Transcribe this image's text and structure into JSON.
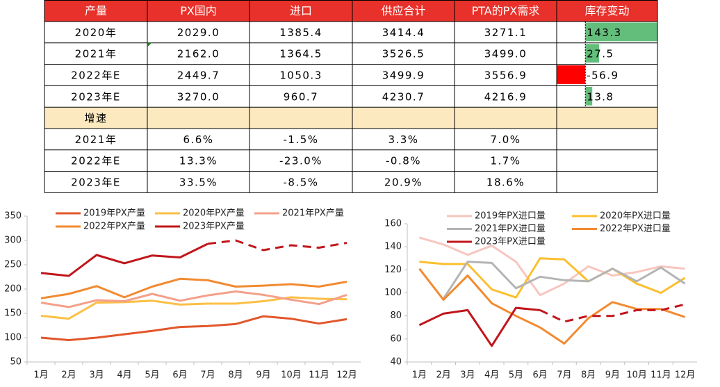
{
  "table": {
    "header": [
      "产量",
      "PX国内",
      "进口",
      "供应合计",
      "PTA的PX需求",
      "库存变动"
    ],
    "rows": [
      [
        "2020年",
        "2029.0",
        "1385.4",
        "3414.4",
        "3271.1",
        143.3
      ],
      [
        "2021年",
        "2162.0",
        "1364.5",
        "3526.5",
        "3499.0",
        27.5
      ],
      [
        "2022年E",
        "2449.7",
        "1050.3",
        "3499.9",
        "3556.9",
        -56.9
      ],
      [
        "2023年E",
        "3270.0",
        "960.7",
        "4230.7",
        "4216.9",
        13.8
      ],
      [
        "增速"
      ],
      [
        "2021年",
        "6.6%",
        "-1.5%",
        "3.3%",
        "7.0%"
      ],
      [
        "2022年E",
        "13.3%",
        "-23.0%",
        "-0.8%",
        "1.7%"
      ],
      [
        "2023年E",
        "33.5%",
        "-8.5%",
        "20.9%",
        "18.6%"
      ]
    ],
    "bar_colors": {
      "positive": "#63be7b",
      "negative": "#ff0000"
    }
  },
  "chart_data": [
    {
      "type": "line",
      "categories": [
        "1月",
        "2月",
        "3月",
        "4月",
        "5月",
        "6月",
        "7月",
        "8月",
        "9月",
        "10月",
        "11月",
        "12月"
      ],
      "ylim": [
        50,
        350
      ],
      "yticks": [
        50,
        100,
        150,
        200,
        250,
        300,
        350
      ],
      "legend": "top",
      "series": [
        {
          "name": "2019年PX产量",
          "color": "#e2562b",
          "values": [
            100,
            95,
            100,
            107,
            114,
            122,
            124,
            128,
            144,
            139,
            129,
            138
          ]
        },
        {
          "name": "2020年PX产量",
          "color": "#fbbf45",
          "values": [
            145,
            139,
            172,
            173,
            176,
            168,
            170,
            170,
            175,
            183,
            180,
            179
          ]
        },
        {
          "name": "2021年PX产量",
          "color": "#f4a08a",
          "values": [
            172,
            163,
            177,
            175,
            190,
            176,
            187,
            195,
            188,
            178,
            169,
            188
          ]
        },
        {
          "name": "2022年PX产量",
          "color": "#f28a30",
          "values": [
            181,
            190,
            206,
            183,
            205,
            221,
            218,
            205,
            207,
            210,
            205,
            215
          ]
        },
        {
          "name": "2023年PX产量",
          "color": "#c0161b",
          "dash_from": 6,
          "values": [
            233,
            227,
            270,
            253,
            269,
            265,
            293,
            300,
            280,
            290,
            285,
            295
          ]
        }
      ]
    },
    {
      "type": "line",
      "categories": [
        "1月",
        "2月",
        "3月",
        "4月",
        "5月",
        "6月",
        "7月",
        "8月",
        "9月",
        "10月",
        "11月",
        "12月"
      ],
      "ylim": [
        40,
        160
      ],
      "yticks": [
        40,
        60,
        80,
        100,
        120,
        140,
        160
      ],
      "legend": "top",
      "series": [
        {
          "name": "2019年PX进口量",
          "color": "#f7c6bf",
          "values": [
            148,
            142,
            133,
            141,
            127,
            98,
            108,
            123,
            115,
            118,
            123,
            121
          ]
        },
        {
          "name": "2020年PX进口量",
          "color": "#fbbf2e",
          "values": [
            127,
            125,
            125,
            103,
            96,
            130,
            129,
            110,
            121,
            108,
            100,
            113
          ]
        },
        {
          "name": "2021年PX进口量",
          "color": "#b4b4b4",
          "values": [
            null,
            95,
            127,
            126,
            104,
            114,
            111,
            110,
            121,
            110,
            122,
            108
          ]
        },
        {
          "name": "2022年PX进口量",
          "color": "#f28a30",
          "values": [
            121,
            94,
            115,
            91,
            80,
            70,
            56,
            78,
            92,
            86,
            86,
            79
          ]
        },
        {
          "name": "2023年PX进口量",
          "color": "#c0161b",
          "dash_from": 5,
          "values": [
            72,
            82,
            85,
            54,
            87,
            85,
            75,
            80,
            80,
            85,
            85,
            90
          ]
        }
      ]
    }
  ]
}
